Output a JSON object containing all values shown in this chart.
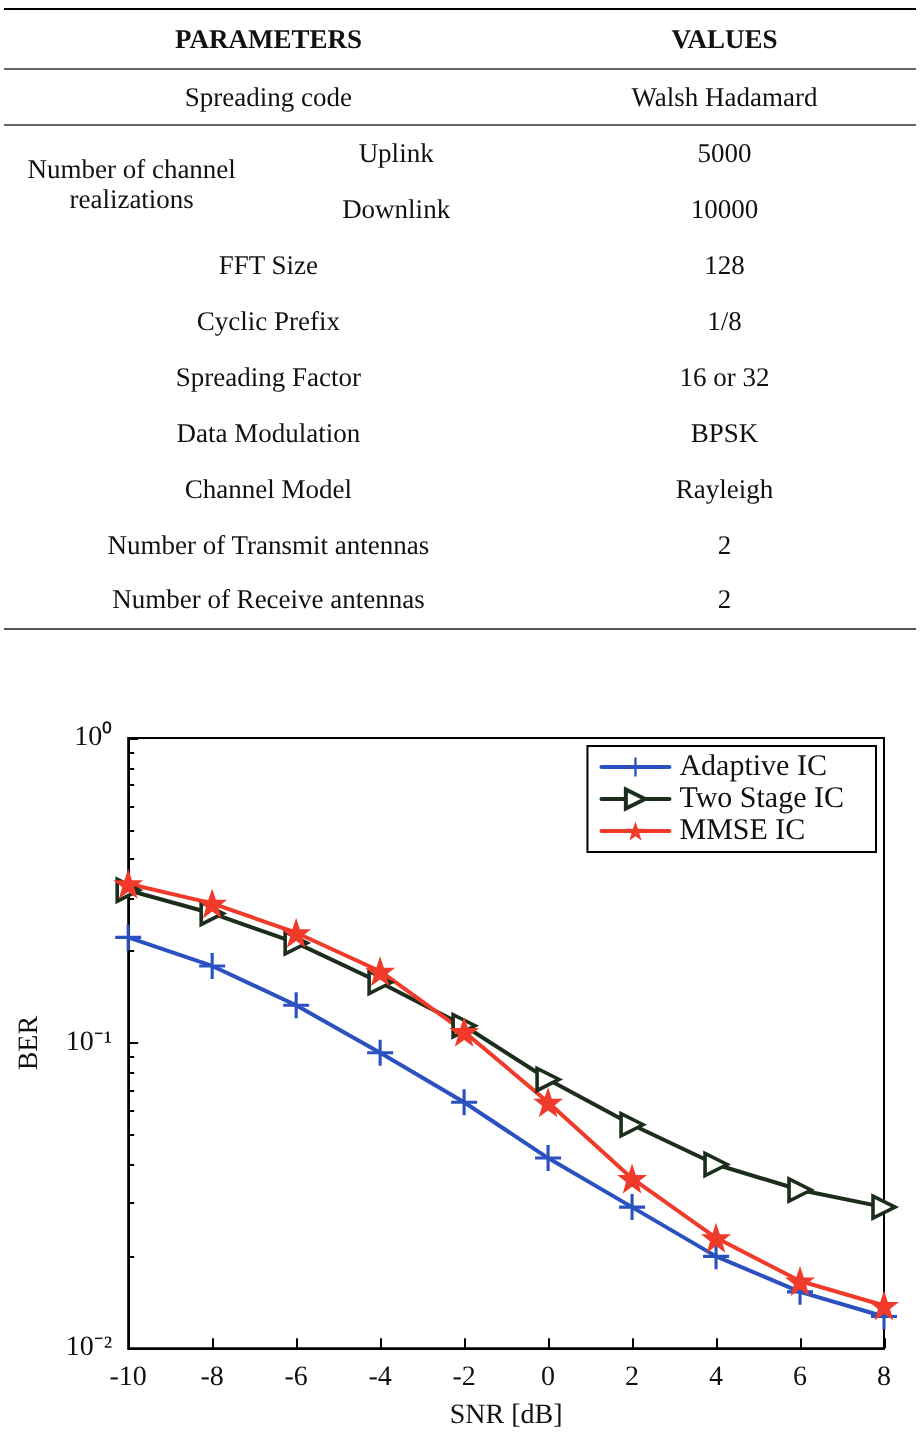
{
  "chart_data": [
    {
      "type": "other",
      "annotations": [
        "PARAMETERS",
        "VALUES",
        "Spreading code",
        "Walsh Hadamard",
        "Number of channel realizations",
        "Uplink",
        "5000",
        "Downlink",
        "10000",
        "FFT Size",
        "128",
        "Cyclic Prefix",
        "1/8",
        "Spreading Factor",
        "16 or 32",
        "Data Modulation",
        "BPSK",
        "Channel Model",
        "Rayleigh",
        "Number of Transmit antennas",
        "2",
        "Number of Receive antennas",
        "2"
      ]
    },
    {
      "type": "line",
      "xlabel": "SNR [dB]",
      "ylabel": "BER",
      "log": "y",
      "x": [
        -10,
        -8,
        -6,
        -4,
        -2,
        0,
        2,
        4,
        6,
        8
      ],
      "xlim": [
        -10,
        8
      ],
      "xticks": [
        -10,
        -8,
        -6,
        -4,
        -2,
        0,
        2,
        4,
        6,
        8
      ],
      "ylim": [
        0.01,
        1
      ],
      "yticks": [
        {
          "value": 0.01,
          "label": "10⁻²"
        },
        {
          "value": 0.1,
          "label": "10⁻¹"
        },
        {
          "value": 1,
          "label": "10⁰"
        }
      ],
      "grid": false,
      "legend": "top right",
      "line_style": "solid",
      "series": [
        {
          "name": "Adaptive IC",
          "color": "#2b50c0",
          "marker": "cross",
          "values": [
            0.222,
            0.179,
            0.133,
            0.093,
            0.064,
            0.042,
            0.029,
            0.02,
            0.0153,
            0.0127
          ]
        },
        {
          "name": "Two Stage IC",
          "color": "#1b2e1b",
          "marker": "triangle",
          "values": [
            0.317,
            0.266,
            0.213,
            0.158,
            0.114,
            0.076,
            0.054,
            0.04,
            0.033,
            0.029
          ]
        },
        {
          "name": "MMSE IC",
          "color": "#f03a2a",
          "marker": "star",
          "values": [
            0.333,
            0.287,
            0.23,
            0.172,
            0.109,
            0.064,
            0.036,
            0.023,
            0.0166,
            0.0138
          ]
        }
      ]
    }
  ]
}
